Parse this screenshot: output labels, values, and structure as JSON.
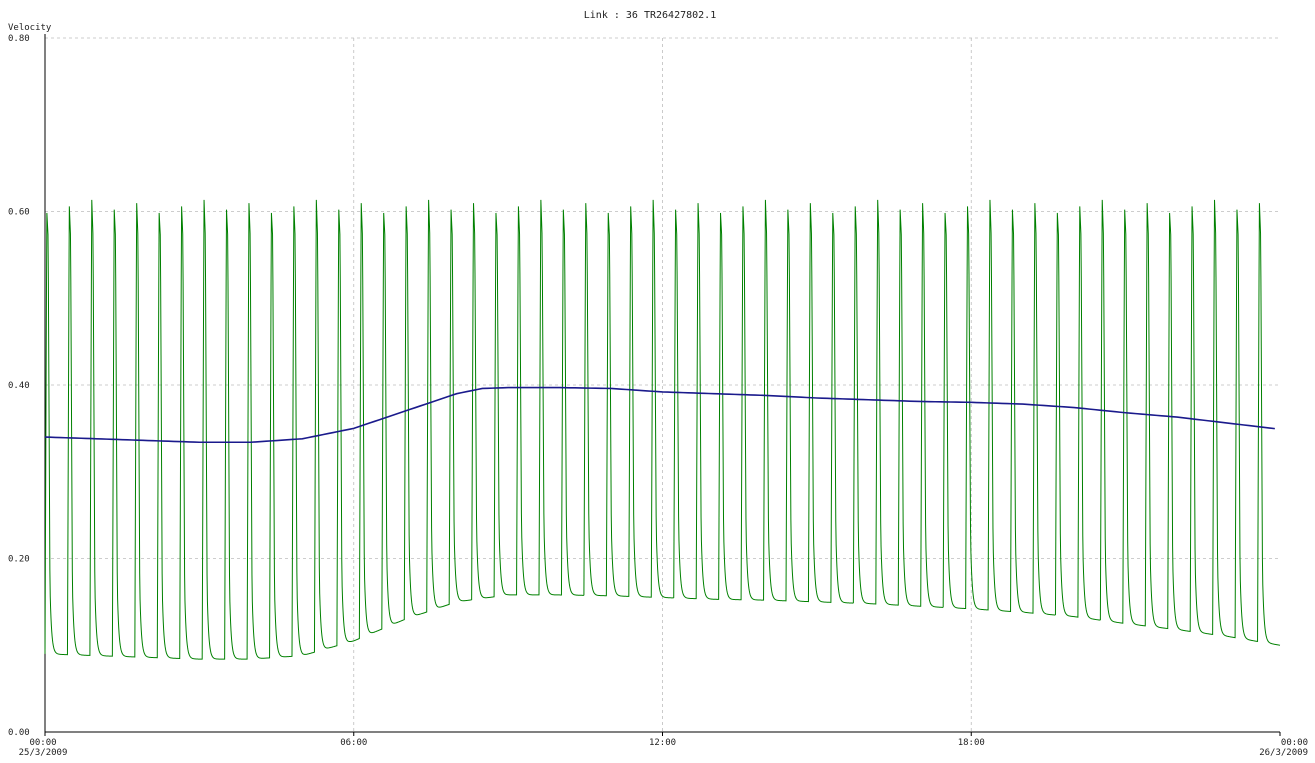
{
  "chart_data": {
    "type": "line",
    "title": "Link : 36 TR26427802.1",
    "ylabel": "Velocity",
    "xlabel": "",
    "ylim": [
      0.0,
      0.8
    ],
    "yticks": [
      "0.00",
      "0.20",
      "0.40",
      "0.60",
      "0.80"
    ],
    "yticks_values": [
      0.0,
      0.2,
      0.4,
      0.6,
      0.8
    ],
    "xlim": [
      "25/3/2009 00:00",
      "26/3/2009 00:00"
    ],
    "xticks": [
      {
        "time": "00:00",
        "date": "25/3/2009",
        "hours": 0
      },
      {
        "time": "06:00",
        "date": "",
        "hours": 6
      },
      {
        "time": "12:00",
        "date": "",
        "hours": 12
      },
      {
        "time": "18:00",
        "date": "",
        "hours": 18
      },
      {
        "time": "00:00",
        "date": "26/3/2009",
        "hours": 24
      }
    ],
    "grid": true,
    "series": [
      {
        "color": "#008000",
        "style": "oscillating",
        "pulses": 55,
        "peak_hours": [
          0,
          2,
          4,
          6,
          8,
          10,
          12,
          14,
          16,
          18,
          20,
          22,
          24
        ],
        "peak_values": [
          0.6,
          0.6,
          0.6,
          0.6,
          0.6,
          0.6,
          0.6,
          0.6,
          0.6,
          0.6,
          0.6,
          0.6,
          0.6
        ],
        "trough_hours": [
          0,
          1,
          2,
          3,
          4,
          5,
          6,
          7,
          8,
          9,
          10,
          11,
          12,
          13,
          14,
          15,
          16,
          17,
          18,
          19,
          20,
          21,
          22,
          23,
          24
        ],
        "trough_values": [
          0.09,
          0.088,
          0.086,
          0.084,
          0.084,
          0.088,
          0.105,
          0.13,
          0.15,
          0.158,
          0.158,
          0.157,
          0.155,
          0.153,
          0.152,
          0.15,
          0.148,
          0.145,
          0.142,
          0.138,
          0.133,
          0.125,
          0.118,
          0.11,
          0.1
        ]
      },
      {
        "color": "#1a1a8c",
        "style": "smooth",
        "x_hours": [
          0,
          1,
          2,
          3,
          4,
          5,
          6,
          7,
          8,
          8.5,
          9,
          10,
          11,
          12,
          13,
          14,
          15,
          16,
          17,
          18,
          19,
          20,
          21,
          22,
          23,
          24
        ],
        "values": [
          0.34,
          0.338,
          0.336,
          0.334,
          0.334,
          0.338,
          0.35,
          0.37,
          0.39,
          0.396,
          0.397,
          0.397,
          0.396,
          0.392,
          0.39,
          0.388,
          0.385,
          0.383,
          0.381,
          0.38,
          0.378,
          0.374,
          0.368,
          0.363,
          0.356,
          0.349
        ]
      }
    ]
  }
}
